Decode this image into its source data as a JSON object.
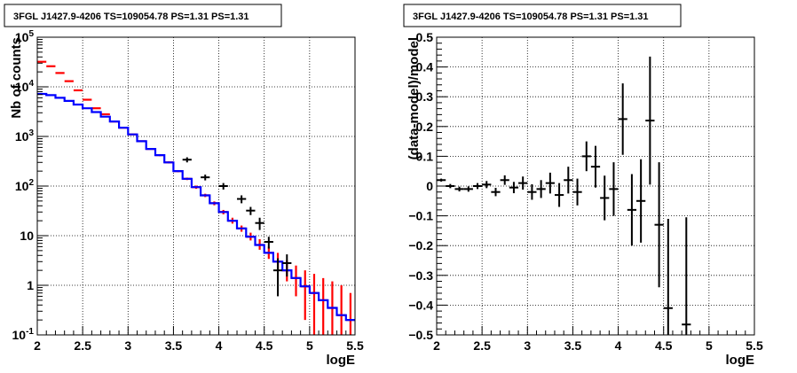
{
  "chart_data": [
    {
      "type": "line",
      "title": "3FGL J1427.9-4206 TS=109054.78 PS=1.31 PS=1.31",
      "xlabel": "logE",
      "ylabel": "Nb of counts",
      "xlim": [
        2,
        5.5
      ],
      "ylim": [
        0.1,
        100000
      ],
      "yscale": "log",
      "grid": true,
      "x_ticks": [
        "2",
        "2.5",
        "3",
        "3.5",
        "4",
        "4.5",
        "5",
        "5.5"
      ],
      "y_ticks": [
        "10^-1",
        "1",
        "10",
        "10^2",
        "10^3",
        "10^4",
        "10^5"
      ],
      "colors": {
        "data": "#000000",
        "model_total": "#ff0000",
        "model_source": "#0000ff"
      },
      "series": [
        {
          "role": "data",
          "x": [
            3.65,
            3.85,
            4.05,
            4.25,
            4.35,
            4.45,
            4.55,
            4.65,
            4.75
          ],
          "y": [
            340,
            150,
            100,
            55,
            32,
            18,
            7.5,
            2,
            2.8
          ],
          "y_low": [
            300,
            130,
            85,
            45,
            26,
            13,
            5.5,
            0.6,
            1.5
          ],
          "y_high": [
            380,
            170,
            115,
            65,
            38,
            23,
            9.5,
            3.5,
            4.2
          ]
        },
        {
          "role": "model_total",
          "x": [
            2.05,
            2.15,
            2.25,
            2.35,
            2.45,
            2.55,
            2.65,
            2.75,
            2.85,
            2.95,
            3.05,
            3.15,
            3.25,
            3.35,
            3.45,
            3.55,
            3.65,
            3.75,
            3.85,
            3.95,
            4.05,
            4.15,
            4.25,
            4.35,
            4.45,
            4.55,
            4.65,
            4.75,
            4.85,
            4.95,
            5.05,
            5.15,
            5.25,
            5.35,
            5.45
          ],
          "y": [
            32000,
            26000,
            19000,
            13000,
            8500,
            5500,
            3700,
            2800,
            2000,
            1500,
            1100,
            800,
            560,
            420,
            300,
            200,
            140,
            95,
            65,
            45,
            30,
            20,
            14,
            9.5,
            6.5,
            4.5,
            3,
            2,
            1.4,
            0.95,
            0.7,
            0.5,
            0.35,
            0.25,
            0.2
          ],
          "y_low": [
            31500,
            25500,
            18600,
            12700,
            8300,
            5350,
            3600,
            2700,
            1950,
            1450,
            1060,
            770,
            540,
            400,
            285,
            190,
            132,
            88,
            60,
            41,
            27,
            17.5,
            12,
            8,
            5.2,
            3.4,
            2.1,
            1.2,
            0.6,
            0.2,
            0.1,
            0.1,
            0.1,
            0.1,
            0.1
          ],
          "y_high": [
            32500,
            26500,
            19400,
            13300,
            8700,
            5650,
            3800,
            2900,
            2050,
            1550,
            1140,
            830,
            580,
            440,
            315,
            210,
            148,
            102,
            70,
            49,
            33,
            23,
            16,
            11.5,
            8.5,
            6,
            4.5,
            3.2,
            2.5,
            2,
            1.7,
            1.4,
            1.2,
            1,
            0.7
          ]
        },
        {
          "role": "model_source",
          "x": [
            2.05,
            2.15,
            2.25,
            2.35,
            2.45,
            2.55,
            2.65,
            2.75,
            2.85,
            2.95,
            3.05,
            3.15,
            3.25,
            3.35,
            3.45,
            3.55,
            3.65,
            3.75,
            3.85,
            3.95,
            4.05,
            4.15,
            4.25,
            4.35,
            4.45,
            4.55,
            4.65,
            4.75,
            4.85,
            4.95,
            5.05,
            5.15,
            5.25,
            5.35,
            5.45
          ],
          "y": [
            7200,
            6800,
            6000,
            5200,
            4400,
            3700,
            3100,
            2500,
            2000,
            1500,
            1100,
            800,
            560,
            420,
            300,
            200,
            140,
            95,
            65,
            45,
            30,
            20,
            14,
            9.5,
            6.5,
            4.5,
            3,
            2,
            1.4,
            0.95,
            0.7,
            0.5,
            0.35,
            0.25,
            0.2
          ]
        }
      ]
    },
    {
      "type": "scatter",
      "title": "3FGL J1427.9-4206 TS=109054.78 PS=1.31 PS=1.31",
      "xlabel": "logE",
      "ylabel": "(data-model)/model",
      "xlim": [
        2,
        5.5
      ],
      "ylim": [
        -0.5,
        0.5
      ],
      "grid": true,
      "x_ticks": [
        "2",
        "2.5",
        "3",
        "3.5",
        "4",
        "4.5",
        "5",
        "5.5"
      ],
      "y_ticks": [
        "−0.5",
        "−0.4",
        "−0.3",
        "−0.2",
        "−0.1",
        "0",
        "0.1",
        "0.2",
        "0.3",
        "0.4",
        "0.5"
      ],
      "series": [
        {
          "role": "residuals",
          "x": [
            2.05,
            2.15,
            2.25,
            2.35,
            2.45,
            2.55,
            2.65,
            2.75,
            2.85,
            2.95,
            3.05,
            3.15,
            3.25,
            3.35,
            3.45,
            3.55,
            3.65,
            3.75,
            3.85,
            3.95,
            4.05,
            4.15,
            4.25,
            4.35,
            4.45,
            4.55,
            4.75
          ],
          "y": [
            0.02,
            0.0,
            -0.01,
            -0.01,
            0.0,
            0.005,
            -0.02,
            0.02,
            -0.005,
            0.01,
            -0.02,
            -0.01,
            0.01,
            -0.03,
            0.02,
            -0.02,
            0.1,
            0.065,
            -0.04,
            -0.01,
            0.225,
            -0.08,
            -0.05,
            0.22,
            -0.13,
            -0.41,
            -0.465
          ],
          "y_err": [
            0.005,
            0.007,
            0.008,
            0.009,
            0.01,
            0.012,
            0.014,
            0.016,
            0.019,
            0.022,
            0.026,
            0.03,
            0.035,
            0.04,
            0.045,
            0.045,
            0.05,
            0.07,
            0.075,
            0.09,
            0.12,
            0.12,
            0.14,
            0.215,
            0.21,
            0.3,
            0.36
          ]
        }
      ]
    }
  ]
}
